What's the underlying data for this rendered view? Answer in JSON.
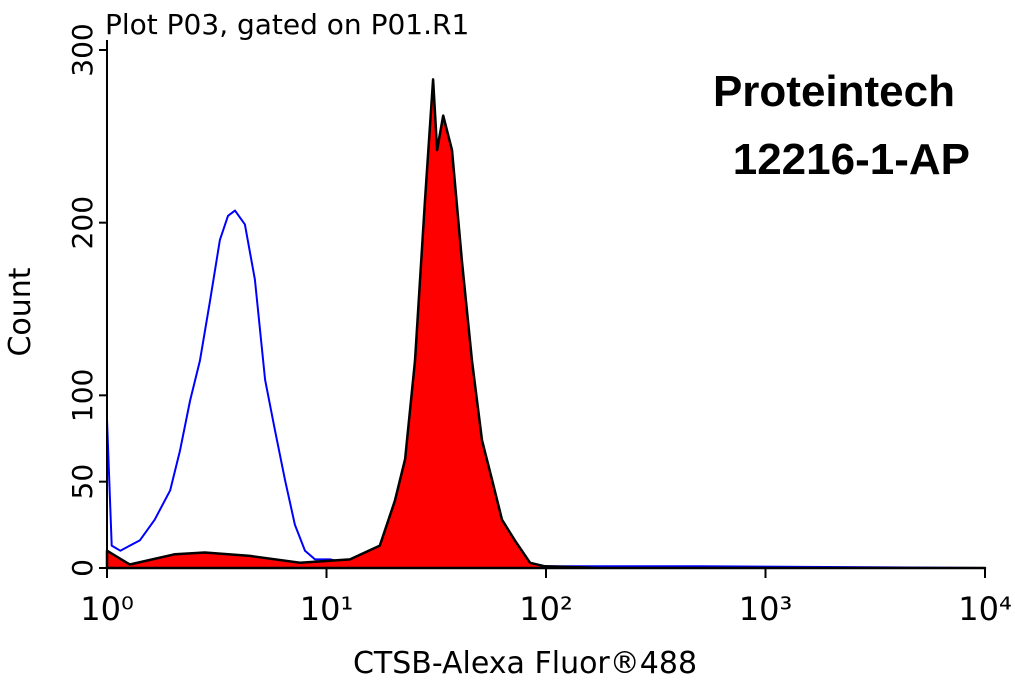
{
  "chart_data": {
    "type": "histogram-overlay",
    "title": "Plot P03, gated on P01.R1",
    "xlabel": "CTSB-Alexa Fluor®488",
    "ylabel": "Count",
    "annotations": [
      "Proteintech",
      "12216-1-AP"
    ],
    "xscale": "log",
    "xlim": [
      1,
      10000
    ],
    "xticks": [
      {
        "value": 1,
        "label": "10⁰"
      },
      {
        "value": 10,
        "label": "10¹"
      },
      {
        "value": 100,
        "label": "10²"
      },
      {
        "value": 1000,
        "label": "10³"
      },
      {
        "value": 10000,
        "label": "10⁴"
      }
    ],
    "ylim": [
      0,
      300
    ],
    "yticks": [
      0,
      50,
      100,
      200,
      300
    ],
    "series": [
      {
        "color": "#0000ff",
        "filled": false,
        "x": [
          1,
          1.05,
          1.15,
          1.41,
          1.65,
          1.94,
          2.15,
          2.39,
          2.65,
          2.95,
          3.27,
          3.56,
          3.83,
          4.25,
          4.72,
          5.25,
          5.82,
          6.47,
          7.18,
          7.98,
          8.86,
          10.4,
          12.8,
          21.6,
          61.7,
          504,
          10000
        ],
        "values": [
          86,
          13,
          10,
          16,
          28,
          45,
          68,
          97,
          120,
          155,
          190,
          204,
          207,
          199,
          167,
          109,
          80,
          51,
          25,
          10,
          5,
          5,
          2,
          1,
          1,
          1,
          0
        ]
      },
      {
        "color": "#ff0000",
        "edgecolor": "#000000",
        "filled": true,
        "x": [
          1,
          1.27,
          2.04,
          2.79,
          4.48,
          7.57,
          12.8,
          17.5,
          20.5,
          22.8,
          25.3,
          28.1,
          30.6,
          31.9,
          34.0,
          37.3,
          41.4,
          46.0,
          51.1,
          56.8,
          63.0,
          72.2,
          84.6,
          98.9,
          176,
          10000
        ],
        "values": [
          10,
          2,
          8,
          9,
          7,
          3,
          5,
          13,
          39,
          63,
          120,
          213,
          283,
          242,
          262,
          242,
          178,
          120,
          74,
          51,
          28,
          16,
          3,
          1,
          0,
          0
        ]
      }
    ]
  }
}
